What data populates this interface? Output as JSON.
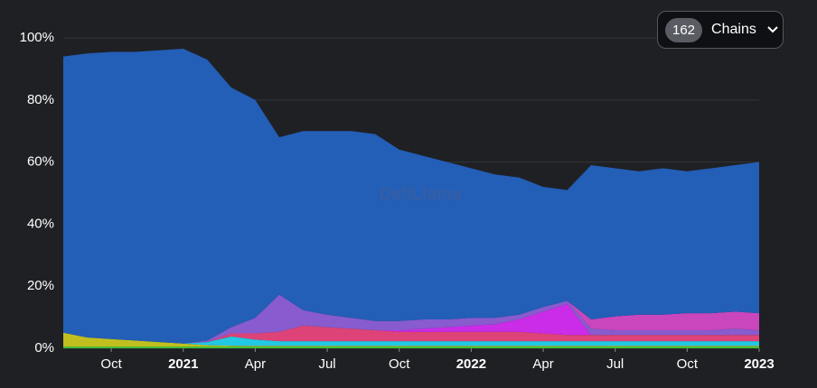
{
  "chart_data": {
    "type": "stacked_area",
    "watermark": "DefiLlama",
    "selector": {
      "count": "162",
      "label": "Chains"
    },
    "x": [
      "2020-08",
      "2020-09",
      "2020-10",
      "2020-11",
      "2020-12",
      "2021-01",
      "2021-02",
      "2021-03",
      "2021-04",
      "2021-05",
      "2021-06",
      "2021-07",
      "2021-08",
      "2021-09",
      "2021-10",
      "2021-11",
      "2021-12",
      "2022-01",
      "2022-02",
      "2022-03",
      "2022-04",
      "2022-05",
      "2022-06",
      "2022-07",
      "2022-08",
      "2022-09",
      "2022-10",
      "2022-11",
      "2022-12",
      "2023-01"
    ],
    "series": [
      {
        "color": "#3ad13a",
        "values": [
          0.5,
          0.5,
          0.5,
          0.5,
          0.5,
          0.5,
          0.5,
          0.5,
          0.5,
          0.5,
          0.5,
          0.5,
          0.5,
          0.5,
          0.5,
          0.5,
          0.5,
          0.5,
          0.5,
          0.5,
          0.5,
          0.5,
          0.5,
          0.5,
          0.5,
          0.5,
          0.5,
          0.5,
          0.5,
          0.5
        ]
      },
      {
        "color": "#c9c820",
        "values": [
          4.5,
          3,
          2.5,
          2,
          1.5,
          1,
          0.5,
          0.3,
          0.3,
          0.3,
          0.3,
          0.3,
          0.3,
          0.3,
          0.3,
          0.3,
          0.3,
          0.3,
          0.3,
          0.3,
          0.3,
          0.3,
          0.3,
          0.3,
          0.3,
          0.3,
          0.3,
          0.3,
          0.3,
          0.3
        ]
      },
      {
        "color": "#22d3ee",
        "values": [
          0,
          0,
          0,
          0,
          0,
          0,
          1,
          3,
          2,
          1.5,
          1.5,
          1.5,
          1.5,
          1.5,
          1.5,
          1.5,
          1.5,
          1.5,
          1.5,
          1.5,
          1.5,
          1.5,
          1.5,
          1.5,
          1.5,
          1.5,
          1.5,
          1.5,
          1.5,
          1.5
        ]
      },
      {
        "color": "#e8467c",
        "values": [
          0,
          0,
          0,
          0,
          0,
          0,
          0,
          1,
          2,
          3,
          5,
          4.5,
          4,
          3.5,
          3,
          3,
          3,
          3,
          3,
          3,
          2.5,
          2,
          2,
          2,
          2,
          2,
          2,
          2,
          2,
          2
        ]
      },
      {
        "color": "#d42df2",
        "values": [
          0,
          0,
          0,
          0,
          0,
          0,
          0,
          0,
          0,
          0,
          0,
          0,
          0,
          0,
          0.5,
          1,
          1.5,
          2,
          2.5,
          4,
          7,
          10,
          0,
          0,
          0,
          0,
          0,
          0,
          0,
          0
        ]
      },
      {
        "color": "#8e5fd8",
        "values": [
          0,
          0,
          0,
          0,
          0,
          0,
          0.5,
          2,
          5,
          12,
          5,
          4,
          3.5,
          3,
          3,
          3,
          2.5,
          2.5,
          2,
          1.5,
          1.5,
          1,
          2,
          1.5,
          1.5,
          1.5,
          1.5,
          1.5,
          2,
          1.5
        ]
      },
      {
        "color": "#d349c6",
        "values": [
          0,
          0,
          0,
          0,
          0,
          0,
          0,
          0,
          0,
          0,
          0,
          0,
          0,
          0,
          0,
          0,
          0,
          0,
          0,
          0,
          0,
          0,
          3,
          4.5,
          5,
          5,
          5.5,
          5.5,
          5.5,
          5.5
        ]
      },
      {
        "color": "#2462c0",
        "values": [
          89,
          91.5,
          92.5,
          93,
          94,
          95,
          90.5,
          77.2,
          70.2,
          50.7,
          57.7,
          59.2,
          60.2,
          60.2,
          55.2,
          52.7,
          50.7,
          48.2,
          46.2,
          44.2,
          38.7,
          35.7,
          49.7,
          47.7,
          46.2,
          47.2,
          45.7,
          46.7,
          47.2,
          48.7
        ]
      }
    ],
    "xlim": [
      "2020-08",
      "2023-01"
    ],
    "xticks": [
      {
        "value": "2020-10",
        "label": "Oct"
      },
      {
        "value": "2021-01",
        "label": "2021"
      },
      {
        "value": "2021-04",
        "label": "Apr"
      },
      {
        "value": "2021-07",
        "label": "Jul"
      },
      {
        "value": "2021-10",
        "label": "Oct"
      },
      {
        "value": "2022-01",
        "label": "2022"
      },
      {
        "value": "2022-04",
        "label": "Apr"
      },
      {
        "value": "2022-07",
        "label": "Jul"
      },
      {
        "value": "2022-10",
        "label": "Oct"
      },
      {
        "value": "2023-01",
        "label": "2023"
      }
    ],
    "ylim": [
      0,
      100
    ],
    "yticks": [
      {
        "value": 0,
        "label": "0%"
      },
      {
        "value": 20,
        "label": "20%"
      },
      {
        "value": 40,
        "label": "40%"
      },
      {
        "value": 60,
        "label": "60%"
      },
      {
        "value": 80,
        "label": "80%"
      },
      {
        "value": 100,
        "label": "100%"
      }
    ],
    "grid": true
  }
}
